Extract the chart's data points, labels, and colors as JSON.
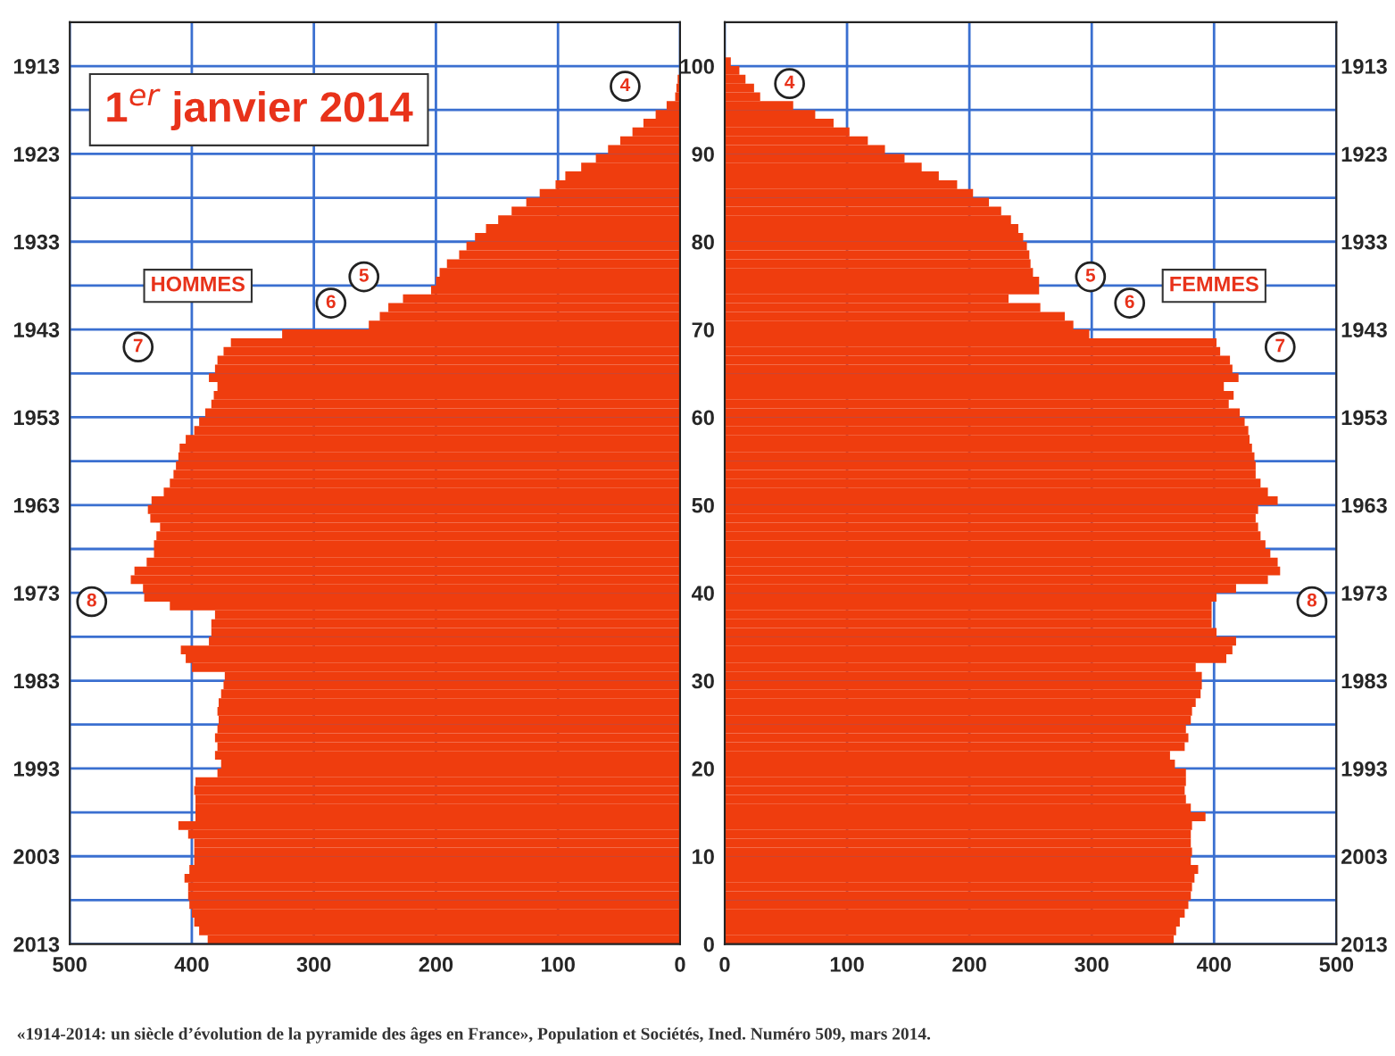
{
  "chart_data": [
    {
      "type": "bar",
      "orientation": "horizontal",
      "title": "1$^{er}$ janvier 2014",
      "x": [
        2013,
        2012,
        2011,
        2010,
        2009,
        2008,
        2007,
        2006,
        2005,
        2004,
        2003,
        2002,
        2001,
        2000,
        1999,
        1998,
        1997,
        1996,
        1995,
        1994,
        1993,
        1992,
        1991,
        1990,
        1989,
        1988,
        1987,
        1986,
        1985,
        1984,
        1983,
        1982,
        1981,
        1980,
        1979,
        1978,
        1977,
        1976,
        1975,
        1974,
        1973,
        1972,
        1971,
        1970,
        1969,
        1968,
        1967,
        1966,
        1965,
        1964,
        1963,
        1962,
        1961,
        1960,
        1959,
        1958,
        1957,
        1956,
        1955,
        1954,
        1953,
        1952,
        1951,
        1950,
        1949,
        1948,
        1947,
        1946,
        1945,
        1944,
        1943,
        1942,
        1941,
        1940,
        1939,
        1938,
        1937,
        1936,
        1935,
        1934,
        1933,
        1932,
        1931,
        1930,
        1929,
        1928,
        1927,
        1926,
        1925,
        1924,
        1923,
        1922,
        1921,
        1920,
        1919,
        1918,
        1917,
        1916,
        1915
      ],
      "series": [
        {
          "name": "HOMMES",
          "color": "#ef3d0e",
          "values": [
            387,
            394,
            398,
            400,
            402,
            403,
            403,
            406,
            402,
            398,
            398,
            398,
            403,
            411,
            397,
            397,
            397,
            398,
            397,
            379,
            376,
            381,
            379,
            381,
            379,
            378,
            379,
            378,
            376,
            374,
            373,
            400,
            405,
            409,
            386,
            384,
            384,
            381,
            418,
            439,
            440,
            450,
            447,
            437,
            431,
            431,
            429,
            426,
            434,
            436,
            433,
            423,
            418,
            415,
            413,
            411,
            410,
            405,
            398,
            394,
            389,
            384,
            382,
            379,
            386,
            381,
            379,
            374,
            368,
            326,
            255,
            246,
            239,
            227,
            204,
            200,
            197,
            191,
            181,
            175,
            168,
            159,
            149,
            138,
            126,
            115,
            102,
            94,
            81,
            69,
            59,
            49,
            39,
            30,
            20,
            11,
            4,
            3,
            2
          ]
        }
      ],
      "xlim": [
        500,
        0
      ],
      "xticks": [
        0,
        100,
        200,
        300,
        400,
        500
      ],
      "ylim": [
        2013,
        1908
      ],
      "yticks": [
        2013,
        {
          "value": 2008,
          "label": null
        },
        2003,
        {
          "value": 1998,
          "label": null
        },
        1993,
        {
          "value": 1988,
          "label": null
        },
        1983,
        {
          "value": 1978,
          "label": null
        },
        1973,
        {
          "value": 1968,
          "label": null
        },
        1963,
        {
          "value": 1958,
          "label": null
        },
        1953,
        {
          "value": 1948,
          "label": null
        },
        1943,
        {
          "value": 1938,
          "label": null
        },
        1933,
        {
          "value": 1928,
          "label": null
        },
        1923,
        {
          "value": 1918,
          "label": null
        },
        1913
      ],
      "grid": true,
      "annotations": [
        {
          "text": "4",
          "x": 45,
          "y": 1915.3
        },
        {
          "text": "5",
          "x": 259,
          "y": 1937
        },
        {
          "text": "6",
          "x": 286,
          "y": 1940
        },
        {
          "text": "7",
          "x": 444,
          "y": 1945
        },
        {
          "text": "8",
          "x": 482,
          "y": 1974
        },
        "«1914-2014: un siècle d’évolution de la pyramide des âges en France», Population et Sociétés, Ined. Numéro 509, mars 2014."
      ]
    },
    {
      "type": "bar",
      "orientation": "horizontal",
      "x": [
        0,
        1,
        2,
        3,
        4,
        5,
        6,
        7,
        8,
        9,
        10,
        11,
        12,
        13,
        14,
        15,
        16,
        17,
        18,
        19,
        20,
        21,
        22,
        23,
        24,
        25,
        26,
        27,
        28,
        29,
        30,
        31,
        32,
        33,
        34,
        35,
        36,
        37,
        38,
        39,
        40,
        41,
        42,
        43,
        44,
        45,
        46,
        47,
        48,
        49,
        50,
        51,
        52,
        53,
        54,
        55,
        56,
        57,
        58,
        59,
        60,
        61,
        62,
        63,
        64,
        65,
        66,
        67,
        68,
        69,
        70,
        71,
        72,
        73,
        74,
        75,
        76,
        77,
        78,
        79,
        80,
        81,
        82,
        83,
        84,
        85,
        86,
        87,
        88,
        89,
        90,
        91,
        92,
        93,
        94,
        95,
        96,
        97,
        98,
        99,
        100
      ],
      "series": [
        {
          "name": "FEMMES",
          "color": "#ef3d0e",
          "values": [
            367,
            369,
            372,
            376,
            379,
            381,
            382,
            384,
            387,
            381,
            382,
            381,
            381,
            382,
            393,
            381,
            377,
            376,
            377,
            377,
            368,
            364,
            376,
            379,
            377,
            381,
            382,
            385,
            389,
            390,
            390,
            385,
            410,
            415,
            418,
            402,
            398,
            398,
            398,
            402,
            418,
            444,
            454,
            452,
            446,
            442,
            438,
            436,
            434,
            436,
            452,
            444,
            438,
            434,
            434,
            433,
            431,
            429,
            428,
            425,
            421,
            412,
            416,
            408,
            420,
            415,
            413,
            405,
            402,
            298,
            285,
            278,
            258,
            232,
            257,
            257,
            252,
            250,
            249,
            247,
            244,
            240,
            234,
            226,
            216,
            203,
            190,
            175,
            161,
            147,
            131,
            117,
            102,
            89,
            74,
            56,
            29,
            24,
            17,
            12,
            5
          ]
        }
      ],
      "xlim": [
        0,
        500
      ],
      "xticks": [
        0,
        100,
        200,
        300,
        400,
        500
      ],
      "ylim": [
        0,
        105
      ],
      "yticks": [
        0,
        {
          "value": 5,
          "label": null
        },
        10,
        {
          "value": 15,
          "label": null
        },
        20,
        {
          "value": 25,
          "label": null
        },
        30,
        {
          "value": 35,
          "label": null
        },
        40,
        {
          "value": 45,
          "label": null
        },
        50,
        {
          "value": 55,
          "label": null
        },
        60,
        {
          "value": 65,
          "label": null
        },
        70,
        {
          "value": 75,
          "label": null
        },
        80,
        {
          "value": 85,
          "label": null
        },
        90,
        {
          "value": 95,
          "label": null
        },
        100
      ],
      "y2lim": [
        2013,
        1908
      ],
      "y2ticks": [
        1913,
        1923,
        1933,
        1943,
        1953,
        1963,
        1973,
        1983,
        1993,
        2003,
        2013
      ],
      "grid": true,
      "annotations": [
        {
          "text": "4",
          "x": 53,
          "y": 98
        },
        {
          "text": "5",
          "x": 299,
          "y": 76
        },
        {
          "text": "6",
          "x": 331,
          "y": 73
        },
        {
          "text": "7",
          "x": 454,
          "y": 68
        },
        {
          "text": "8",
          "x": 480,
          "y": 39
        }
      ]
    }
  ]
}
